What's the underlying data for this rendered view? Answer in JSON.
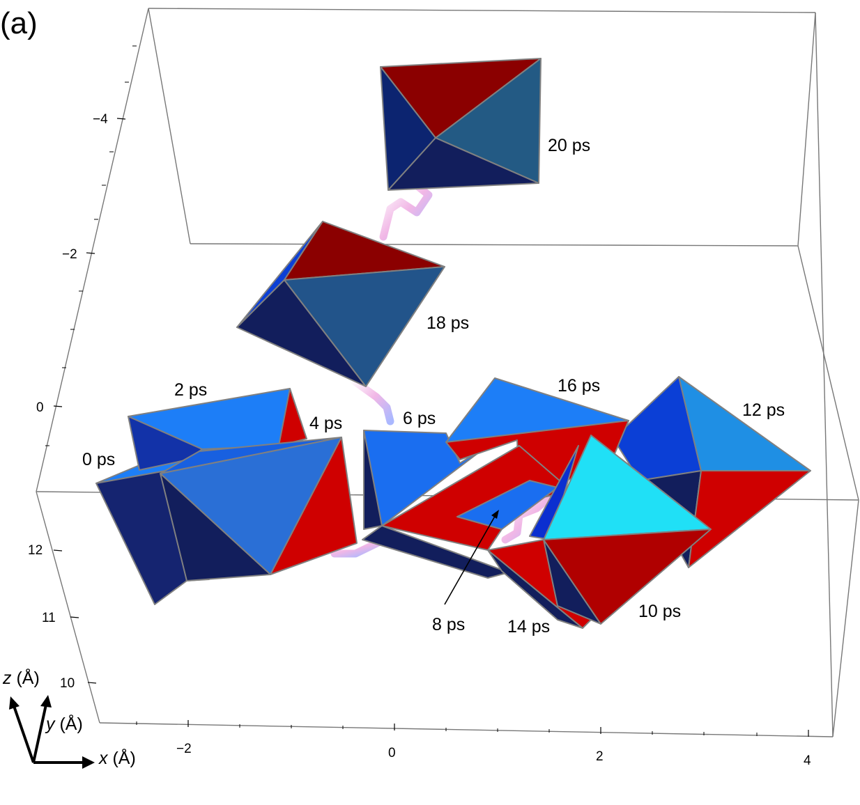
{
  "panel_label": "(a)",
  "time_labels": [
    "0 ps",
    "2 ps",
    "4 ps",
    "6 ps",
    "8 ps",
    "10 ps",
    "12 ps",
    "14 ps",
    "16 ps",
    "18 ps",
    "20 ps"
  ],
  "axes": {
    "x": {
      "label_var": "x",
      "label_unit": " (Å)",
      "ticks": [
        "−2",
        "0",
        "2",
        "4"
      ]
    },
    "y": {
      "label_var": "y",
      "label_unit": " (Å)",
      "ticks": [
        "10",
        "11",
        "12"
      ]
    },
    "z": {
      "label_var": "z",
      "label_unit": " (Å)",
      "ticks": [
        "−4",
        "−2",
        "0"
      ]
    }
  },
  "colors": {
    "light_blue": "#1d7ef7",
    "mid_blue": "#2a6fd6",
    "dark_navy": "#121e5c",
    "navy": "#152470",
    "bright_blue": "#0b3fd6",
    "red": "#cf0000",
    "dark_red": "#8b0000",
    "steel_blue": "#235a84",
    "cyan": "#20e0f6",
    "tube_light": "#f0c8f0"
  }
}
